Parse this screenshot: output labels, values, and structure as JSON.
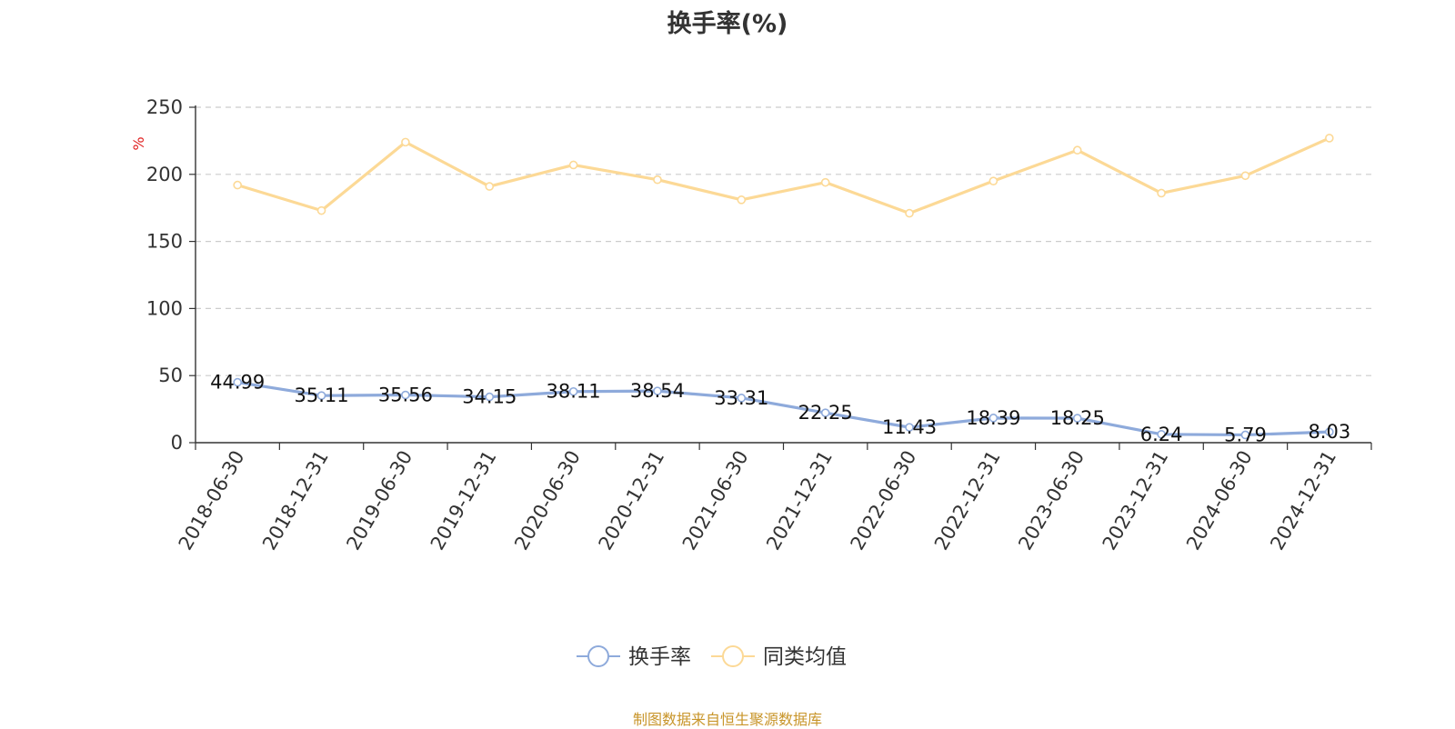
{
  "chart_data": {
    "type": "line",
    "title": "换手率(%)",
    "ylabel": "%",
    "xlabel": "",
    "ylim": [
      0,
      250
    ],
    "yticks": [
      0,
      50,
      100,
      150,
      200,
      250
    ],
    "grid": true,
    "legend_position": "bottom-center",
    "categories": [
      "2018-06-30",
      "2018-12-31",
      "2019-06-30",
      "2019-12-31",
      "2020-06-30",
      "2020-12-31",
      "2021-06-30",
      "2021-12-31",
      "2022-06-30",
      "2022-12-31",
      "2023-06-30",
      "2023-12-31",
      "2024-06-30",
      "2024-12-31"
    ],
    "series": [
      {
        "name": "换手率",
        "color": "#8eaadb",
        "values": [
          44.99,
          35.11,
          35.56,
          34.15,
          38.11,
          38.54,
          33.31,
          22.25,
          11.43,
          18.39,
          18.25,
          6.24,
          5.79,
          8.03
        ],
        "labels": [
          "44.99",
          "35.11",
          "35.56",
          "34.15",
          "38.11",
          "38.54",
          "33.31",
          "22.25",
          "11.43",
          "18.39",
          "18.25",
          "6.24",
          "5.79",
          "8.03"
        ]
      },
      {
        "name": "同类均值",
        "color": "#fcd996",
        "values": [
          192,
          173,
          224,
          191,
          207,
          196,
          181,
          194,
          171,
          195,
          218,
          186,
          199,
          227
        ]
      }
    ]
  },
  "source_note": "制图数据来自恒生聚源数据库"
}
